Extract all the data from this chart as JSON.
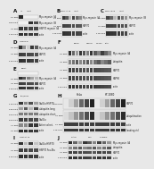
{
  "fig_bg": "#e8e8e8",
  "panel_bg": "#d8d8d8",
  "gel_bg": "#c8c8c8",
  "white_bg": "#f0f0f0",
  "band_colors": {
    "dark": "#111111",
    "medium": "#444444",
    "light": "#888888",
    "vlight": "#bbbbbb"
  },
  "text_color": "#111111",
  "label_fontsize": 1.8,
  "panel_letter_fontsize": 4.0,
  "size_fontsize": 1.7,
  "layout": {
    "rows": 10,
    "cols": 2
  }
}
